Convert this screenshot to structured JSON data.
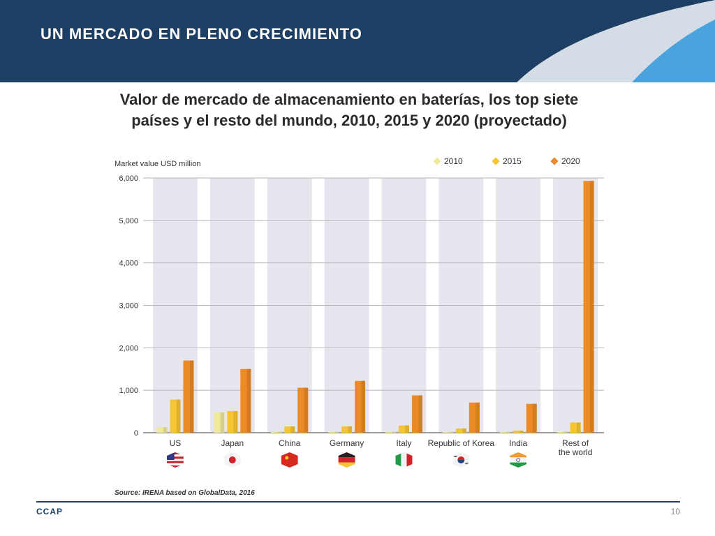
{
  "slide": {
    "title": "UN MERCADO EN PLENO CRECIMIENTO",
    "subtitle_line1": "Valor de mercado de almacenamiento en baterías, los top siete",
    "subtitle_line2": "países y el resto del mundo, 2010, 2015 y 2020 (proyectado)",
    "brand": "CCAP",
    "page_number": "10"
  },
  "colors": {
    "header_bg": "#1c3f63",
    "accent_light": "#d4dde6",
    "accent_blue": "#4aa3dc",
    "column_band": "#e6e6ef",
    "series_2010": "#f0e89a",
    "series_2015": "#f7c531",
    "series_2020": "#ec8a25"
  },
  "chart_data": {
    "type": "bar",
    "ylabel": "Market value USD million",
    "ylim": [
      0,
      6000
    ],
    "yticks": [
      0,
      1000,
      2000,
      3000,
      4000,
      5000,
      6000
    ],
    "ytick_labels": [
      "0",
      "1,000",
      "2,000",
      "3,000",
      "4,000",
      "5,000",
      "6,000"
    ],
    "grid": true,
    "legend_position": "top-right",
    "categories": [
      "US",
      "Japan",
      "China",
      "Germany",
      "Italy",
      "Republic of Korea",
      "India",
      "Rest of the world"
    ],
    "category_label_lines": [
      [
        "US"
      ],
      [
        "Japan"
      ],
      [
        "China"
      ],
      [
        "Germany"
      ],
      [
        "Italy"
      ],
      [
        "Republic of Korea"
      ],
      [
        "India"
      ],
      [
        "Rest of",
        "the world"
      ]
    ],
    "flag_icons": [
      "us-flag-icon",
      "japan-flag-icon",
      "china-flag-icon",
      "germany-flag-icon",
      "italy-flag-icon",
      "korea-flag-icon",
      "india-flag-icon",
      ""
    ],
    "series": [
      {
        "name": "2010",
        "color": "#f0e89a",
        "values": [
          130,
          480,
          10,
          10,
          10,
          10,
          10,
          30
        ]
      },
      {
        "name": "2015",
        "color": "#f7c531",
        "values": [
          780,
          510,
          150,
          150,
          170,
          100,
          50,
          240
        ]
      },
      {
        "name": "2020",
        "color": "#ec8a25",
        "values": [
          1700,
          1500,
          1060,
          1220,
          880,
          710,
          680,
          5930
        ]
      }
    ],
    "source": "Source: IRENA based on GlobalData, 2016"
  }
}
